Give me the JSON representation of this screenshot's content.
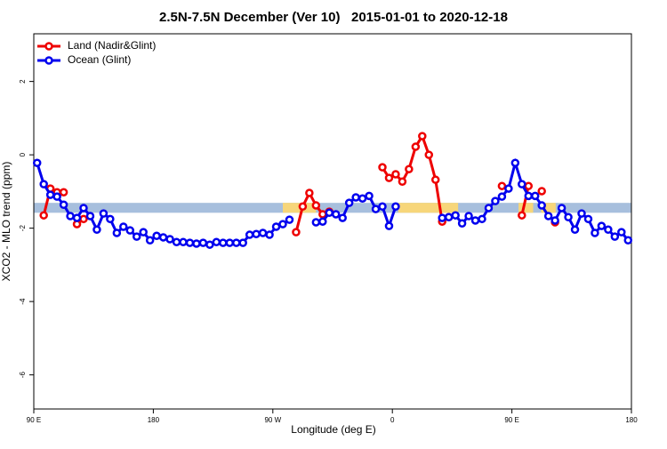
{
  "chart_data": {
    "type": "line",
    "title": "2.5N-7.5N December (Ver 10)   2015-01-01 to 2020-12-18",
    "x_label": "Longitude (deg E)",
    "y_label": "XCO2 - MLO trend (ppm)",
    "x": [
      92.5,
      97.5,
      102.5,
      107.5,
      112.5,
      117.5,
      122.5,
      127.5,
      132.5,
      137.5,
      142.5,
      147.5,
      152.5,
      157.5,
      162.5,
      167.5,
      172.5,
      177.5,
      182.5,
      187.5,
      192.5,
      197.5,
      202.5,
      207.5,
      212.5,
      217.5,
      222.5,
      227.5,
      232.5,
      237.5,
      242.5,
      247.5,
      252.5,
      257.5,
      262.5,
      267.5,
      272.5,
      277.5,
      282.5,
      287.5,
      292.5,
      297.5,
      302.5,
      307.5,
      312.5,
      317.5,
      322.5,
      327.5,
      332.5,
      337.5,
      342.5,
      347.5,
      352.5,
      357.5,
      362.5,
      367.5,
      372.5,
      377.5,
      382.5,
      387.5,
      392.5,
      397.5,
      402.5,
      407.5,
      412.5,
      417.5,
      422.5,
      427.5,
      432.5,
      437.5,
      442.5,
      447.5,
      452.5,
      457.5,
      462.5,
      467.5,
      472.5,
      477.5,
      482.5,
      487.5,
      492.5,
      497.5,
      502.5,
      507.5,
      512.5,
      517.5,
      522.5,
      527.5,
      532.5,
      537.5
    ],
    "series": [
      {
        "name": "Land (Nadir&Glint)",
        "color": "#ee0000",
        "values": [
          null,
          -1.65,
          -0.92,
          -1.02,
          -1.02,
          null,
          -1.89,
          -1.75,
          null,
          null,
          null,
          null,
          null,
          null,
          null,
          null,
          null,
          null,
          null,
          null,
          null,
          null,
          null,
          null,
          null,
          null,
          null,
          null,
          null,
          null,
          null,
          null,
          null,
          null,
          null,
          null,
          null,
          null,
          null,
          -2.11,
          -1.41,
          -1.04,
          -1.38,
          -1.62,
          -1.55,
          null,
          null,
          null,
          null,
          null,
          null,
          null,
          -0.34,
          -0.63,
          -0.53,
          -0.73,
          -0.39,
          0.22,
          0.51,
          0.0,
          -0.68,
          -1.82,
          -1.7,
          null,
          null,
          null,
          null,
          null,
          null,
          null,
          -0.85,
          null,
          null,
          -1.65,
          -0.85,
          null,
          -0.99,
          null,
          -1.84,
          null,
          null,
          null,
          null,
          null,
          null,
          null,
          null,
          null,
          null,
          null
        ]
      },
      {
        "name": "Ocean (Glint)",
        "color": "#0000ee",
        "values": [
          -0.22,
          -0.8,
          -1.09,
          -1.14,
          -1.36,
          -1.67,
          -1.72,
          -1.45,
          -1.67,
          -2.04,
          -1.6,
          -1.75,
          -2.13,
          -1.96,
          -2.06,
          -2.23,
          -2.11,
          -2.33,
          -2.21,
          -2.25,
          -2.3,
          -2.38,
          -2.38,
          -2.4,
          -2.42,
          -2.4,
          -2.45,
          -2.38,
          -2.4,
          -2.4,
          -2.4,
          -2.4,
          -2.18,
          -2.16,
          -2.13,
          -2.18,
          -1.96,
          -1.89,
          -1.77,
          null,
          null,
          null,
          -1.84,
          -1.82,
          -1.58,
          -1.62,
          -1.72,
          -1.31,
          -1.16,
          -1.19,
          -1.12,
          -1.48,
          -1.41,
          -1.94,
          -1.41,
          null,
          null,
          null,
          null,
          null,
          null,
          -1.72,
          -1.7,
          -1.65,
          -1.87,
          -1.67,
          -1.79,
          -1.75,
          -1.45,
          -1.26,
          -1.14,
          -0.92,
          -0.22,
          -0.8,
          -1.12,
          -1.12,
          -1.38,
          -1.67,
          -1.79,
          -1.45,
          -1.7,
          -2.04,
          -1.6,
          -1.75,
          -2.13,
          -1.94,
          -2.04,
          -2.23,
          -2.11,
          -2.33
        ]
      }
    ],
    "band_y": [
      -1.31,
      -1.58
    ],
    "band_color": "#a7bfdd",
    "highlight_x": [
      [
        277.5,
        302.5
      ],
      [
        364.5,
        409.5
      ],
      [
        455,
        466
      ],
      [
        472,
        483
      ]
    ],
    "highlight_color": "#f7d67a",
    "xlim": [
      90,
      540
    ],
    "ylim": [
      3.3,
      -6.93
    ],
    "xticks": [
      {
        "value": 90,
        "label": "90 E"
      },
      {
        "value": 180,
        "label": "180"
      },
      {
        "value": 270,
        "label": "90 W"
      },
      {
        "value": 360,
        "label": "0"
      },
      {
        "value": 450,
        "label": "90 E"
      },
      {
        "value": 540,
        "label": "180"
      }
    ],
    "yticks": [
      2,
      0,
      -2,
      -4,
      -6
    ],
    "legend": "top-left"
  }
}
